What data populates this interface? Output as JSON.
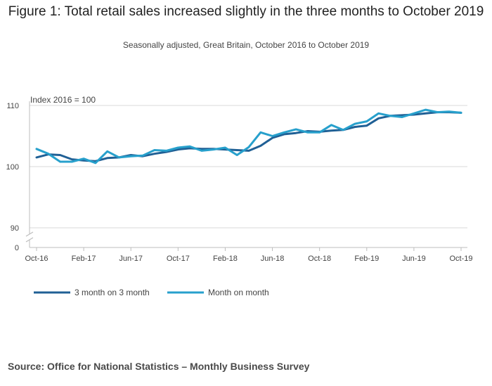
{
  "chart_data": {
    "type": "line",
    "title": "Figure 1: Total retail sales increased slightly in the three months to October 2019",
    "subtitle": "Seasonally adjusted, Great Britain, October 2016 to October 2019",
    "ylabel": "Index 2016 = 100",
    "xlabel": "",
    "ylim": [
      90,
      110
    ],
    "y_ticks": [
      "110",
      "100",
      "90",
      "0"
    ],
    "y_break": true,
    "x_ticks": [
      "Oct-16",
      "Feb-17",
      "Jun-17",
      "Oct-17",
      "Feb-18",
      "Jun-18",
      "Oct-18",
      "Feb-19",
      "Jun-19",
      "Oct-19"
    ],
    "x_tick_index": [
      0,
      4,
      8,
      12,
      16,
      20,
      24,
      28,
      32,
      36
    ],
    "legend_position": "bottom-left",
    "series": [
      {
        "name": "3 month on 3 month",
        "color": "#206095",
        "values": [
          101.5,
          102.0,
          101.9,
          101.2,
          101.0,
          100.9,
          101.4,
          101.5,
          101.9,
          101.7,
          102.1,
          102.4,
          102.8,
          103.0,
          102.9,
          102.9,
          102.8,
          102.7,
          102.6,
          103.4,
          104.7,
          105.3,
          105.5,
          105.8,
          105.7,
          105.9,
          106.0,
          106.5,
          106.7,
          107.9,
          108.3,
          108.4,
          108.5,
          108.7,
          108.9,
          108.9,
          108.8
        ]
      },
      {
        "name": "Month on month",
        "color": "#27a0cc",
        "values": [
          102.9,
          102.1,
          100.8,
          100.8,
          101.3,
          100.6,
          102.5,
          101.5,
          101.7,
          101.8,
          102.7,
          102.6,
          103.1,
          103.3,
          102.6,
          102.8,
          103.1,
          101.9,
          103.2,
          105.6,
          105.0,
          105.6,
          106.1,
          105.6,
          105.6,
          106.8,
          106.0,
          107.0,
          107.4,
          108.7,
          108.3,
          108.1,
          108.7,
          109.3,
          108.9,
          109.0,
          108.8
        ]
      }
    ]
  },
  "source": "Source: Office for National Statistics – Monthly Business Survey"
}
